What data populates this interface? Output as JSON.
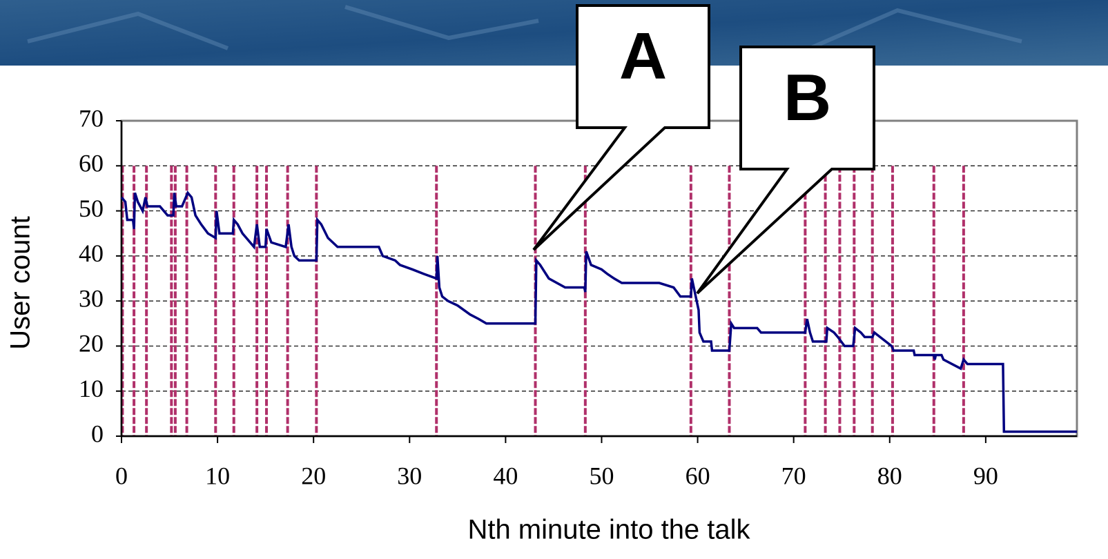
{
  "chart_data": {
    "type": "line",
    "xlabel": "Nth minute into the talk",
    "ylabel": "User count",
    "annotations": [
      "A",
      "B"
    ],
    "xlim": [
      0,
      99.5
    ],
    "xticks": [
      0,
      10,
      20,
      30,
      40,
      50,
      60,
      70,
      80,
      90
    ],
    "ylim": [
      0,
      70
    ],
    "yticks": [
      0,
      10,
      20,
      30,
      40,
      50,
      60,
      70
    ],
    "grid": true,
    "vlines": [
      0.1,
      1.3,
      2.6,
      5.2,
      5.6,
      6.8,
      9.8,
      11.7,
      14.1,
      15.1,
      17.3,
      20.3,
      32.8,
      43.1,
      48.3,
      59.3,
      63.3,
      71.2,
      73.3,
      74.8,
      76.3,
      78.2,
      80.3,
      84.6,
      87.7
    ],
    "vline_color": "#b0306a",
    "series": [
      {
        "color": "#000080",
        "x": [
          0,
          0.4,
          0.6,
          1.2,
          1.3,
          1.4,
          1.7,
          2.2,
          2.5,
          2.7,
          4,
          4.4,
          4.8,
          5.4,
          5.5,
          5.7,
          6.3,
          6.9,
          7.3,
          7.7,
          8.3,
          9,
          9.8,
          9.9,
          10.2,
          11.6,
          11.7,
          12.1,
          12.6,
          13,
          13.8,
          14.1,
          14.4,
          15,
          15.1,
          15.6,
          17.1,
          17.4,
          17.7,
          18,
          18.5,
          20.3,
          20.4,
          20.8,
          21.5,
          22.5,
          26.8,
          27.2,
          28.5,
          29,
          30.3,
          31.5,
          32.8,
          32.9,
          33.1,
          33.4,
          34,
          35,
          36.3,
          37.2,
          38,
          43.1,
          43.2,
          43.6,
          44.5,
          46.2,
          48.2,
          48.3,
          48.4,
          48.9,
          50,
          50.6,
          51.3,
          52.1,
          56,
          57.5,
          58.2,
          59.3,
          59.4,
          59.8,
          60.1,
          60.2,
          60.6,
          61.4,
          61.5,
          63.3,
          63.5,
          63.8,
          66.2,
          66.6,
          71.2,
          71.4,
          71.7,
          72,
          73.4,
          73.5,
          74.2,
          74.6,
          75.3,
          76.2,
          76.4,
          77,
          77.4,
          78.2,
          78.4,
          79,
          79.6,
          80.2,
          80.4,
          82.5,
          82.6,
          84.6,
          84.7,
          84.8,
          85.4,
          85.6,
          86.5,
          87.4,
          87.7,
          88.1,
          91.8,
          91.9,
          99.5
        ],
        "values": [
          53,
          52,
          48,
          48,
          46,
          54,
          52,
          50,
          53,
          51,
          51,
          50,
          49,
          49,
          54,
          51,
          51,
          54,
          53,
          49,
          47,
          45,
          44,
          50,
          45,
          45,
          48,
          47,
          45,
          44,
          42,
          47,
          42,
          42,
          46,
          43,
          42,
          47,
          42,
          40,
          39,
          39,
          48,
          47,
          44,
          42,
          42,
          40,
          39,
          38,
          37,
          36,
          35,
          40,
          33,
          31,
          30,
          29,
          27,
          26,
          25,
          25,
          39,
          38,
          35,
          33,
          33,
          32,
          41,
          38,
          37,
          36,
          35,
          34,
          34,
          33,
          31,
          31,
          35,
          31,
          28,
          23,
          21,
          21,
          19,
          19,
          25,
          24,
          24,
          23,
          23,
          26,
          23,
          21,
          21,
          24,
          23,
          22,
          20,
          20,
          24,
          23,
          22,
          22,
          23,
          22,
          21,
          20,
          19,
          19,
          18,
          18,
          17,
          18,
          18,
          17,
          16,
          15,
          17,
          16,
          16,
          1,
          1
        ]
      }
    ]
  }
}
